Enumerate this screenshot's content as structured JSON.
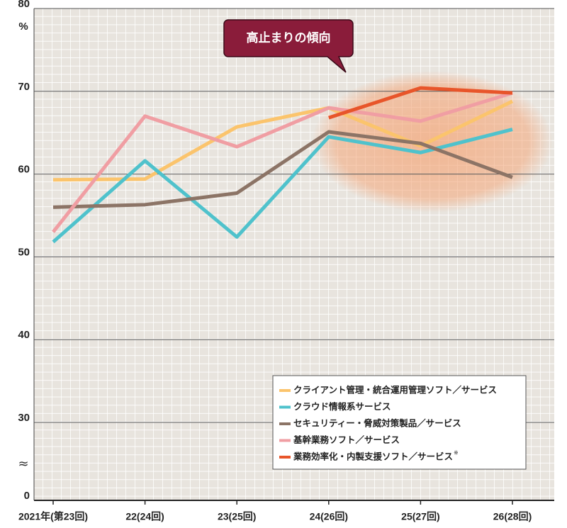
{
  "chart_data": {
    "type": "line",
    "categories": [
      "2021年(第23回)",
      "22(24回)",
      "23(25回)",
      "24(26回)",
      "25(27回)",
      "26(28回)"
    ],
    "series": [
      {
        "name": "クライアント管理・統合運用管理ソフト／サービス",
        "color": "#fbc46c",
        "values": [
          59.3,
          59.4,
          65.7,
          68.0,
          63.4,
          68.8
        ]
      },
      {
        "name": "クラウド情報系サービス",
        "color": "#4fc2cc",
        "values": [
          51.8,
          61.6,
          52.4,
          64.5,
          62.6,
          65.4
        ]
      },
      {
        "name": "セキュリティー・脅威対策製品／サービス",
        "color": "#8c7466",
        "values": [
          56.0,
          56.3,
          57.7,
          65.1,
          63.7,
          59.6
        ]
      },
      {
        "name": "基幹業務ソフト／サービス",
        "color": "#f09ea3",
        "values": [
          53.0,
          67.0,
          63.3,
          68.0,
          66.4,
          69.8
        ]
      },
      {
        "name": "業務効率化・内製支援ソフト／サービス",
        "marker": "※",
        "color": "#e8552a",
        "values": [
          null,
          null,
          null,
          66.8,
          70.4,
          69.8
        ]
      }
    ],
    "ylim": [
      0,
      80
    ],
    "yticks": [
      0,
      30,
      40,
      50,
      60,
      70,
      80
    ],
    "axis_break": {
      "from": 0,
      "to": 30,
      "label": "≈"
    },
    "y_unit": "%",
    "grid": true,
    "legend": "lower right",
    "annotation": "高止まりの傾向"
  }
}
